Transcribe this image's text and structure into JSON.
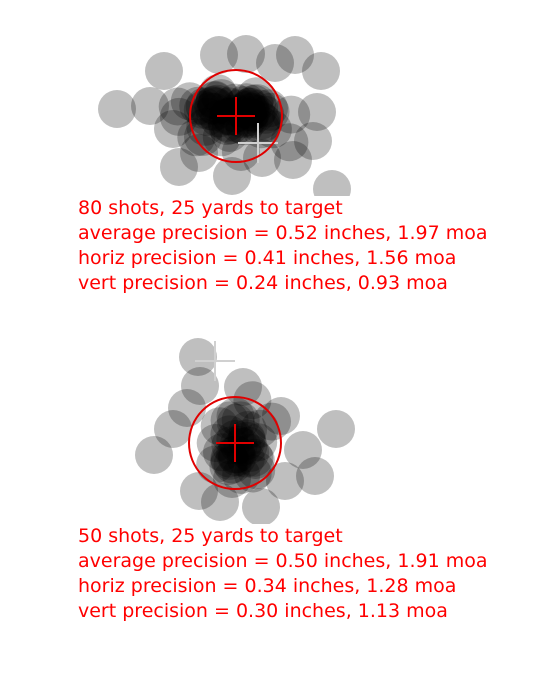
{
  "colors": {
    "text": "#ff0000",
    "circle": "#e00000",
    "crosshair": "#e00000",
    "shot_fill": "#000000",
    "shot_opacity": 0.25,
    "poa_marker": "#d0d0d0"
  },
  "groups": [
    {
      "shots": 80,
      "lines": [
        "80 shots, 25 yards to target",
        "average precision = 0.52 inches, 1.97 moa",
        "horiz precision = 0.41 inches, 1.56 moa",
        "vert precision = 0.24 inches, 0.93 moa"
      ]
    },
    {
      "shots": 50,
      "lines": [
        "50 shots, 25 yards to target",
        "average precision = 0.50 inches, 1.91 moa",
        "horiz precision = 0.34 inches, 1.28 moa",
        "vert precision = 0.30 inches, 1.13 moa"
      ]
    }
  ]
}
